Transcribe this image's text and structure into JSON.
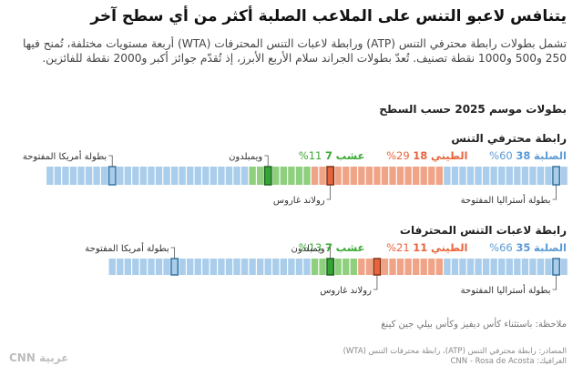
{
  "header": {
    "title": "يتنافس لاعبو التنس على الملاعب الصلبة أكثر من أي سطح آخر",
    "description": "تشمل بطولات رابطة محترفي التنس (ATP) ورابطة لاعبات التنس المحترفات (WTA) أربعة مستويات مختلفة، تُمنح فيها 250 و500 و1000 نقطة تصنيف. تُعدّ بطولات الجراند سلام الأربع الأبرز، إذ تُقدّم جوائز أكبر و2000 نقطة للفائزين.",
    "subtitle": "بطولات موسم 2025 حسب السطح"
  },
  "colors": {
    "hard": "#a9cdea",
    "clay": "#f0a487",
    "grass": "#8fd07e",
    "hard_slam": "#2e6f9e",
    "clay_slam": "#e8643c",
    "grass_slam": "#35a635",
    "hard_text": "#5b9bd5",
    "clay_text": "#e8643c",
    "grass_text": "#3aaa35"
  },
  "legend_labels": {
    "hard": "الصلبة",
    "clay": "الطيني",
    "grass": "عشب"
  },
  "chart_data": [
    {
      "type": "bar",
      "title": "رابطة محترفي التنس",
      "hard": {
        "count": 38,
        "percent": "60%"
      },
      "clay": {
        "count": 18,
        "percent": "29%"
      },
      "grass": {
        "count": 7,
        "percent": "11%"
      },
      "sequence": "HAHHHHHHHHHHHHHHCCCCCCCCCCCCCCCCCGGGGGGGGHHHHHHHHHHHHHHHHHAHHHHHHHH",
      "annotations": [
        {
          "label": "بطولة أستراليا المفتوحة",
          "position": "below"
        },
        {
          "label": "رولاند غاروس",
          "position": "below"
        },
        {
          "label": "ويمبلدون",
          "position": "above"
        },
        {
          "label": "بطولة أمريكا المفتوحة",
          "position": "above"
        }
      ]
    },
    {
      "type": "bar",
      "title": "رابطة لاعبات التنس المحترفات",
      "hard": {
        "count": 35,
        "percent": "66%"
      },
      "clay": {
        "count": 11,
        "percent": "21%"
      },
      "grass": {
        "count": 7,
        "percent": "13%"
      },
      "sequence": "HAHHHHHHHHHHHHHHCCCCCCCCCCCGGGGGGHHHHHHHHHHHHHHHHHAHHHHHHHH",
      "annotations": [
        {
          "label": "بطولة أستراليا المفتوحة",
          "position": "below"
        },
        {
          "label": "رولاند غاروس",
          "position": "below"
        },
        {
          "label": "ويمبلدون",
          "position": "above"
        },
        {
          "label": "بطولة أمريكا المفتوحة",
          "position": "above"
        }
      ]
    }
  ],
  "footer": {
    "note": "ملاحظة: باستثناء كأس ديفيز وكأس بيلي جين كينغ",
    "source": "المصادر: رابطة محترفي التنس (ATP)، رابطة محترفات التنس (WTA)",
    "graphics": "الغرافيك: CNN - Rosa de Acosta",
    "logo": "CNN عربية"
  }
}
